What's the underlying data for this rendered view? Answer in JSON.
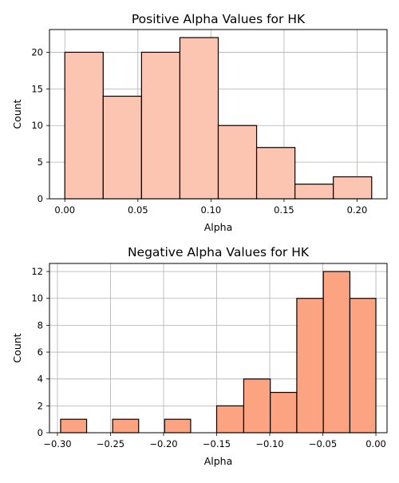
{
  "chart_data": [
    {
      "type": "bar",
      "title": "Positive Alpha Values for HK",
      "xlabel": "Alpha",
      "ylabel": "Count",
      "bar_color": "#fcc5b1",
      "edge_color": "#000000",
      "grid": true,
      "xlim": [
        -0.0105,
        0.2205
      ],
      "ylim": [
        0,
        23.1
      ],
      "xticks": [
        0.0,
        0.05,
        0.1,
        0.15,
        0.2
      ],
      "xtick_labels": [
        "0.00",
        "0.05",
        "0.10",
        "0.15",
        "0.20"
      ],
      "yticks": [
        0,
        5,
        10,
        15,
        20
      ],
      "ytick_labels": [
        "0",
        "5",
        "10",
        "15",
        "20"
      ],
      "bins": [
        {
          "x0": 0.0,
          "x1": 0.02625,
          "value": 20
        },
        {
          "x0": 0.02625,
          "x1": 0.0525,
          "value": 14
        },
        {
          "x0": 0.0525,
          "x1": 0.07875,
          "value": 20
        },
        {
          "x0": 0.07875,
          "x1": 0.105,
          "value": 22
        },
        {
          "x0": 0.105,
          "x1": 0.13125,
          "value": 10
        },
        {
          "x0": 0.13125,
          "x1": 0.1575,
          "value": 7
        },
        {
          "x0": 0.1575,
          "x1": 0.18375,
          "value": 2
        },
        {
          "x0": 0.18375,
          "x1": 0.21,
          "value": 3
        }
      ]
    },
    {
      "type": "bar",
      "title": "Negative Alpha Values for HK",
      "xlabel": "Alpha",
      "ylabel": "Count",
      "bar_color": "#fca482",
      "edge_color": "#000000",
      "grid": true,
      "xlim": [
        -0.3075,
        0.0105
      ],
      "ylim": [
        0,
        12.6
      ],
      "xticks": [
        -0.3,
        -0.25,
        -0.2,
        -0.15,
        -0.1,
        -0.05,
        0.0
      ],
      "xtick_labels": [
        "−0.30",
        "−0.25",
        "−0.20",
        "−0.15",
        "−0.10",
        "−0.05",
        "0.00"
      ],
      "yticks": [
        0,
        2,
        4,
        6,
        8,
        10,
        12
      ],
      "ytick_labels": [
        "0",
        "2",
        "4",
        "6",
        "8",
        "10",
        "12"
      ],
      "bins": [
        {
          "x0": -0.297,
          "x1": -0.2725,
          "value": 1
        },
        {
          "x0": -0.2725,
          "x1": -0.248,
          "value": 0
        },
        {
          "x0": -0.248,
          "x1": -0.2235,
          "value": 1
        },
        {
          "x0": -0.2235,
          "x1": -0.199,
          "value": 0
        },
        {
          "x0": -0.199,
          "x1": -0.1745,
          "value": 1
        },
        {
          "x0": -0.1745,
          "x1": -0.15,
          "value": 0
        },
        {
          "x0": -0.15,
          "x1": -0.1245,
          "value": 2
        },
        {
          "x0": -0.1245,
          "x1": -0.0995,
          "value": 4
        },
        {
          "x0": -0.0995,
          "x1": -0.0745,
          "value": 3
        },
        {
          "x0": -0.0745,
          "x1": -0.0495,
          "value": 10
        },
        {
          "x0": -0.0495,
          "x1": -0.0245,
          "value": 12
        },
        {
          "x0": -0.0245,
          "x1": 0.0,
          "value": 10
        }
      ]
    }
  ]
}
